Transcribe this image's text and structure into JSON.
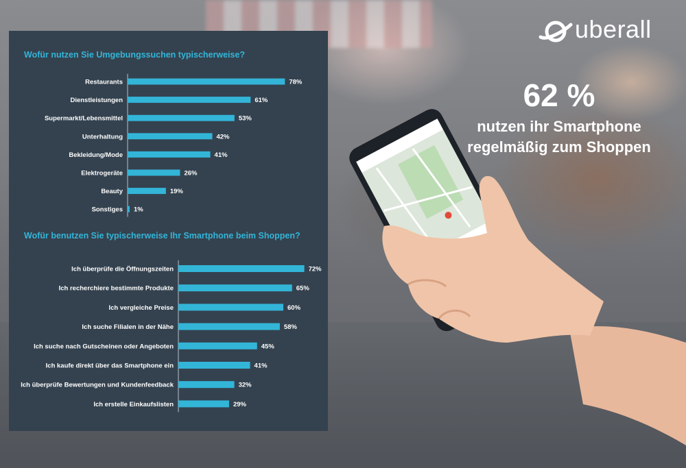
{
  "brand": {
    "name": "uberall"
  },
  "headline": {
    "stat": "62 %",
    "line1": "nutzen ihr Smartphone",
    "line2": "regelmäßig zum Shoppen"
  },
  "colors": {
    "bar": "#33b5d8",
    "panel": "#34424f",
    "title": "#33b5d8"
  },
  "chart_data": [
    {
      "type": "bar",
      "orientation": "horizontal",
      "title": "Wofür nutzen Sie Umgebungssuchen typischerweise?",
      "categories": [
        "Restaurants",
        "Dienstleistungen",
        "Supermarkt/Lebensmittel",
        "Unterhaltung",
        "Bekleidung/Mode",
        "Elektrogeräte",
        "Beauty",
        "Sonstiges"
      ],
      "values": [
        78,
        61,
        53,
        42,
        41,
        26,
        19,
        1
      ],
      "value_labels": [
        "78%",
        "61%",
        "53%",
        "42%",
        "41%",
        "26%",
        "19%",
        "1%"
      ],
      "unit": "%",
      "xlim": [
        0,
        100
      ],
      "grid": false,
      "legend": "none"
    },
    {
      "type": "bar",
      "orientation": "horizontal",
      "title": "Wofür benutzen Sie typischerweise Ihr Smartphone beim Shoppen?",
      "categories": [
        "Ich überprüfe die Öffnungszeiten",
        "Ich recherchiere bestimmte Produkte",
        "Ich vergleiche Preise",
        "Ich suche Filialen in der Nähe",
        "Ich suche nach Gutscheinen oder Angeboten",
        "Ich kaufe direkt über das Smartphone ein",
        "Ich überprüfe Bewertungen und Kundenfeedback",
        "Ich erstelle Einkaufslisten"
      ],
      "values": [
        72,
        65,
        60,
        58,
        45,
        41,
        32,
        29
      ],
      "value_labels": [
        "72%",
        "65%",
        "60%",
        "58%",
        "45%",
        "41%",
        "32%",
        "29%"
      ],
      "unit": "%",
      "xlim": [
        0,
        100
      ],
      "grid": false,
      "legend": "none"
    }
  ]
}
